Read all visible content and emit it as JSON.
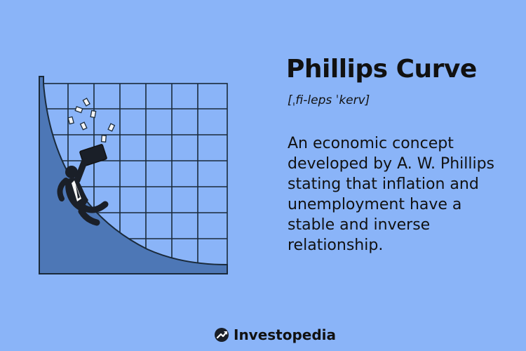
{
  "term": {
    "title": "Phillips Curve",
    "pronunciation": "[ˌfi-leps ˈkerv]",
    "definition": "An economic concept developed by A. W. Phillips stating that inflation and unemployment have a stable and inverse relationship."
  },
  "brand": {
    "name": "Investopedia",
    "logo_icon": "investopedia-logo-icon"
  },
  "illustration": {
    "description_icon": "businessman-sliding-down-curve",
    "curve_color": "#4d77b6",
    "grid_color": "#1a2a3a",
    "background_color": "#8ab4f8"
  }
}
